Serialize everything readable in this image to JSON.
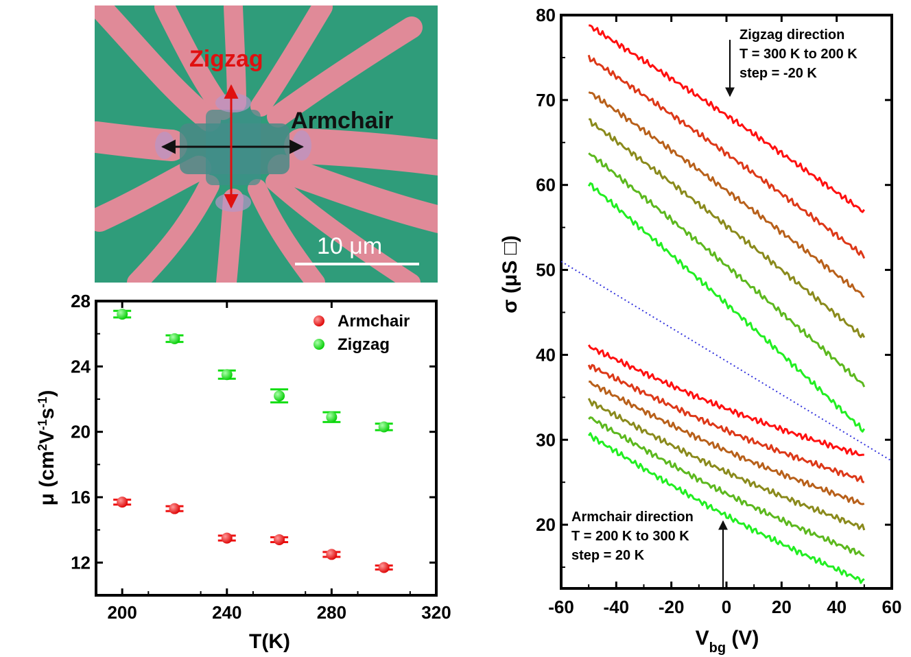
{
  "micrograph": {
    "label_zigzag": "Zigzag",
    "label_armchair": "Armchair",
    "scale_bar_text": "10 μm",
    "colors": {
      "substrate": "#2f9c7a",
      "electrode": "#e08a98",
      "zigzag_arrow": "#e01010",
      "armchair_arrow": "#111111"
    }
  },
  "chart_data": [
    {
      "type": "scatter",
      "xlabel": "T(K)",
      "ylabel_parts": {
        "a": "μ (cm",
        "b": "2",
        "c": "V",
        "d": "-1",
        "e": "s",
        "f": "-1",
        "g": ")"
      },
      "xlim": [
        190,
        320
      ],
      "ylim": [
        10,
        28
      ],
      "xticks": [
        "200",
        "240",
        "280",
        "320"
      ],
      "yticks": [
        "12",
        "16",
        "20",
        "24",
        "28"
      ],
      "legend_position": "top-right",
      "series": [
        {
          "name": "Armchair",
          "color": "#ee1111",
          "x": [
            200,
            220,
            240,
            260,
            280,
            300
          ],
          "y": [
            15.7,
            15.3,
            13.5,
            13.4,
            12.5,
            11.7
          ],
          "err": [
            0.15,
            0.15,
            0.15,
            0.15,
            0.15,
            0.12
          ]
        },
        {
          "name": "Zigzag",
          "color": "#11dd11",
          "x": [
            200,
            220,
            240,
            260,
            280,
            300
          ],
          "y": [
            27.2,
            25.7,
            23.5,
            22.2,
            20.9,
            20.3
          ],
          "err": [
            0.2,
            0.2,
            0.25,
            0.4,
            0.3,
            0.2
          ]
        }
      ]
    },
    {
      "type": "line",
      "xlabel_parts": {
        "main": "V",
        "sub": "bg",
        "rest": " (V)"
      },
      "ylabel": "σ (μS □)",
      "xlim": [
        -60,
        60
      ],
      "ylim": [
        12.5,
        80
      ],
      "xticks": [
        "-60",
        "-40",
        "-20",
        "0",
        "20",
        "40",
        "60"
      ],
      "yticks": [
        "20",
        "30",
        "40",
        "50",
        "60",
        "70",
        "80"
      ],
      "annotation_zigzag": {
        "line1": "Zigzag direction",
        "line2": "T = 300 K to 200 K",
        "line3": "step = -20 K"
      },
      "annotation_armchair": {
        "line1": "Armchair direction",
        "line2": "T = 200 K to 300 K",
        "line3": "step = 20 K"
      },
      "divider": {
        "x": [
          -60,
          60
        ],
        "y": [
          51,
          27.5
        ],
        "color": "#3333dd"
      },
      "x": [
        -50,
        50
      ],
      "series": [
        {
          "group": "zigzag",
          "T": 300,
          "color": "#ff1010",
          "y": [
            78.8,
            56.8
          ]
        },
        {
          "group": "zigzag",
          "T": 280,
          "color": "#dd3818",
          "y": [
            75.0,
            51.6
          ]
        },
        {
          "group": "zigzag",
          "T": 260,
          "color": "#b8601a",
          "y": [
            71.0,
            46.9
          ]
        },
        {
          "group": "zigzag",
          "T": 240,
          "color": "#8a8a1c",
          "y": [
            67.6,
            42.0
          ]
        },
        {
          "group": "zigzag",
          "T": 220,
          "color": "#5cb81e",
          "y": [
            63.8,
            36.4
          ]
        },
        {
          "group": "zigzag",
          "T": 200,
          "color": "#22ee22",
          "y": [
            60.2,
            31.0
          ]
        },
        {
          "group": "armchair",
          "T": 300,
          "color": "#ff1010",
          "y": [
            41.0,
            28.1
          ]
        },
        {
          "group": "armchair",
          "T": 280,
          "color": "#dd3818",
          "y": [
            38.8,
            25.2
          ]
        },
        {
          "group": "armchair",
          "T": 260,
          "color": "#b8601a",
          "y": [
            36.8,
            22.4
          ]
        },
        {
          "group": "armchair",
          "T": 240,
          "color": "#8a8a1c",
          "y": [
            34.6,
            19.6
          ]
        },
        {
          "group": "armchair",
          "T": 220,
          "color": "#5cb81e",
          "y": [
            32.7,
            16.4
          ]
        },
        {
          "group": "armchair",
          "T": 200,
          "color": "#22ee22",
          "y": [
            30.6,
            13.3
          ]
        }
      ]
    }
  ]
}
